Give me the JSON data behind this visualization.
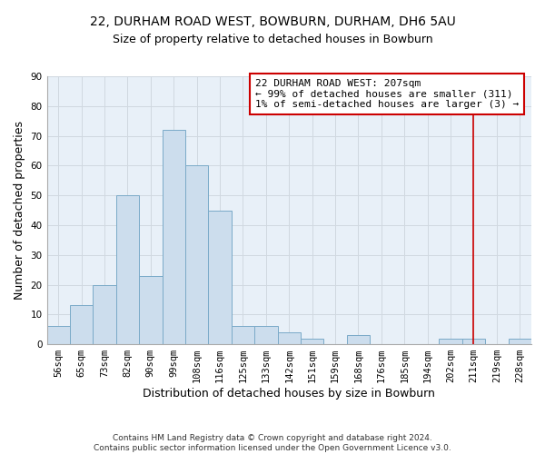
{
  "title": "22, DURHAM ROAD WEST, BOWBURN, DURHAM, DH6 5AU",
  "subtitle": "Size of property relative to detached houses in Bowburn",
  "xlabel": "Distribution of detached houses by size in Bowburn",
  "ylabel": "Number of detached properties",
  "bar_labels": [
    "56sqm",
    "65sqm",
    "73sqm",
    "82sqm",
    "90sqm",
    "99sqm",
    "108sqm",
    "116sqm",
    "125sqm",
    "133sqm",
    "142sqm",
    "151sqm",
    "159sqm",
    "168sqm",
    "176sqm",
    "185sqm",
    "194sqm",
    "202sqm",
    "211sqm",
    "219sqm",
    "228sqm"
  ],
  "bar_values": [
    6,
    13,
    20,
    50,
    23,
    72,
    60,
    45,
    6,
    6,
    4,
    2,
    0,
    3,
    0,
    0,
    0,
    2,
    2,
    0,
    2
  ],
  "bar_color": "#ccdded",
  "bar_edge_color": "#7aaac8",
  "vline_x_idx": 18,
  "vline_color": "#cc0000",
  "annotation_box_text": "22 DURHAM ROAD WEST: 207sqm\n← 99% of detached houses are smaller (311)\n1% of semi-detached houses are larger (3) →",
  "annotation_box_color": "#cc0000",
  "annotation_box_fill": "#ffffff",
  "ylim": [
    0,
    90
  ],
  "yticks": [
    0,
    10,
    20,
    30,
    40,
    50,
    60,
    70,
    80,
    90
  ],
  "footer_text": "Contains HM Land Registry data © Crown copyright and database right 2024.\nContains public sector information licensed under the Open Government Licence v3.0.",
  "grid_color": "#d0d8e0",
  "bg_color": "#ffffff",
  "plot_bg_color": "#e8f0f8",
  "title_fontsize": 10,
  "subtitle_fontsize": 9,
  "axis_label_fontsize": 9,
  "tick_fontsize": 7.5,
  "annotation_fontsize": 8,
  "footer_fontsize": 6.5
}
